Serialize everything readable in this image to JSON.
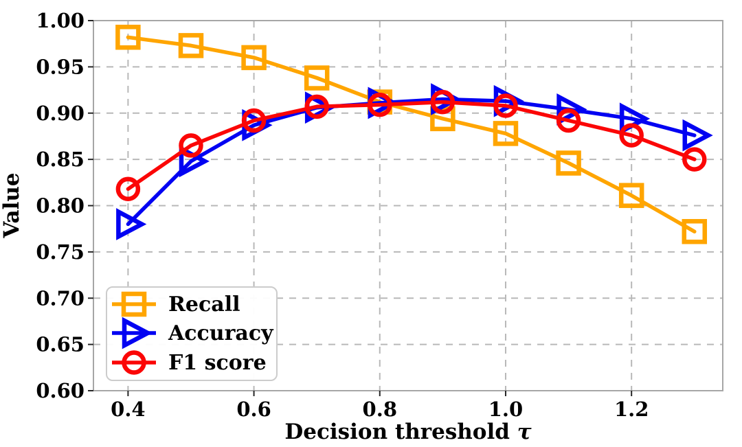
{
  "figure": {
    "background": "#ffffff"
  },
  "chart_data": {
    "type": "line",
    "title": "",
    "xlabel": "Decision threshold τ",
    "xlabel_parts": {
      "text": "Decision threshold ",
      "symbol": "τ"
    },
    "ylabel": "Value",
    "x": [
      0.4,
      0.5,
      0.6,
      0.7,
      0.8,
      0.9,
      1.0,
      1.1,
      1.2,
      1.3
    ],
    "series": [
      {
        "name": "Recall",
        "color": "#FFA500",
        "marker": "square",
        "values": [
          0.982,
          0.973,
          0.96,
          0.938,
          0.912,
          0.894,
          0.878,
          0.846,
          0.811,
          0.772
        ]
      },
      {
        "name": "Accuracy",
        "color": "#0202F2",
        "marker": "triangle-right",
        "values": [
          0.78,
          0.848,
          0.887,
          0.906,
          0.911,
          0.915,
          0.913,
          0.904,
          0.894,
          0.876
        ]
      },
      {
        "name": "F1 score",
        "color": "#FB0606",
        "marker": "circle",
        "values": [
          0.818,
          0.865,
          0.892,
          0.907,
          0.909,
          0.912,
          0.908,
          0.892,
          0.876,
          0.85
        ]
      }
    ],
    "xlim": [
      0.345,
      1.345
    ],
    "ylim": [
      0.6,
      1.0
    ],
    "xticks": [
      0.4,
      0.6,
      0.8,
      1.0,
      1.2
    ],
    "xtick_labels": [
      "0.4",
      "0.6",
      "0.8",
      "1.0",
      "1.2"
    ],
    "yticks": [
      0.6,
      0.65,
      0.7,
      0.75,
      0.8,
      0.85,
      0.9,
      0.95,
      1.0
    ],
    "ytick_labels": [
      "0.60",
      "0.65",
      "0.70",
      "0.75",
      "0.80",
      "0.85",
      "0.90",
      "0.95",
      "1.00"
    ],
    "grid": true,
    "grid_style": "dashed",
    "legend": {
      "position": "lower-left",
      "entries": [
        "Recall",
        "Accuracy",
        "F1 score"
      ]
    },
    "colors": {
      "grid": "#b8b8b8",
      "spine": "#a6a6a6",
      "tick": "#262626",
      "text": "#000000",
      "background": "#ffffff",
      "legend_border": "#cccccc",
      "legend_background": "#ffffff"
    }
  }
}
